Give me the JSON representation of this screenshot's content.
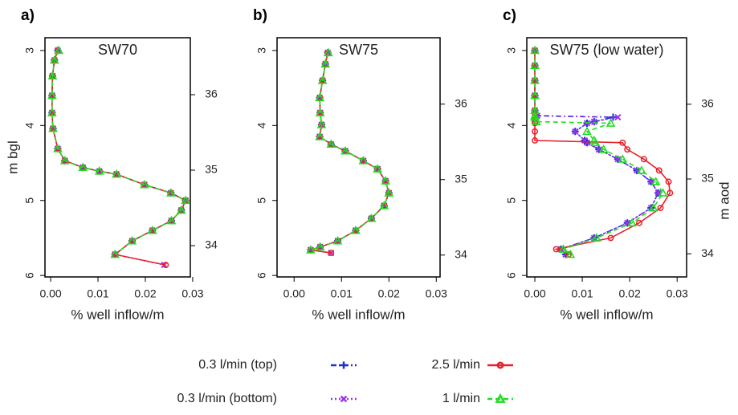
{
  "chart_data": [
    {
      "type": "line",
      "label": "a)",
      "title": "SW70",
      "ylabel": "m bgl",
      "xlabel": "% well inflow/m",
      "y_inverted": true,
      "depths": [
        3.0,
        3.13,
        3.34,
        3.6,
        3.83,
        4.04,
        4.31,
        4.47,
        4.56,
        4.61,
        4.65,
        4.79,
        4.9,
        5.0,
        5.13,
        5.27,
        5.4,
        5.54,
        5.72,
        5.86
      ],
      "series": [
        {
          "name": "0.3 l/min (top)",
          "color": "#1a2fd6",
          "marker": "plus",
          "linestyle": "dashdot",
          "values": [
            0.0015,
            0.0008,
            0.0004,
            0.0003,
            0.0003,
            0.0005,
            0.0015,
            0.003,
            0.0068,
            0.0103,
            0.0139,
            0.0198,
            0.0254,
            0.0285,
            0.0276,
            0.0255,
            0.0215,
            0.0172,
            0.0136,
            null
          ]
        },
        {
          "name": "0.3 l/min  (bottom)",
          "color": "#9933ee",
          "marker": "x",
          "linestyle": "dotted",
          "values": [
            0.0015,
            0.0008,
            0.0004,
            0.0003,
            0.0003,
            0.0005,
            0.0015,
            0.003,
            0.0068,
            0.0103,
            0.0139,
            0.0198,
            0.0254,
            0.0285,
            0.0276,
            0.0255,
            0.0215,
            0.0172,
            0.0136,
            0.024
          ]
        },
        {
          "name": "2.5 l/min",
          "color": "#e8202a",
          "marker": "circle",
          "linestyle": "solid",
          "values": [
            0.0015,
            0.0008,
            0.0004,
            0.0003,
            0.0003,
            0.0005,
            0.0015,
            0.003,
            0.0068,
            0.0103,
            0.0139,
            0.0198,
            0.0254,
            0.0285,
            0.0276,
            0.0255,
            0.0215,
            0.0172,
            0.0136,
            0.0243
          ]
        },
        {
          "name": "1 l/min",
          "color": "#22dd22",
          "marker": "triangle",
          "linestyle": "dashed",
          "values": [
            0.0017,
            0.0008,
            0.0004,
            0.0003,
            0.0003,
            0.0005,
            0.0015,
            0.003,
            0.0068,
            0.0103,
            0.0139,
            0.0198,
            0.0254,
            0.0285,
            0.0276,
            0.0255,
            0.0215,
            0.0172,
            0.0136,
            null
          ]
        }
      ],
      "xlim": [
        -0.0012,
        0.0295
      ],
      "xticks": [
        {
          "value": 0,
          "label": "0.00"
        },
        {
          "value": 0.01,
          "label": "0.01"
        },
        {
          "value": 0.02,
          "label": "0.02"
        },
        {
          "value": 0.03,
          "label": "0.03"
        }
      ],
      "ylim": [
        2.83,
        6.02
      ],
      "yticks": [
        3,
        4,
        5,
        6
      ],
      "y2lim": [
        33.585,
        36.755
      ],
      "y2ticks": [
        34,
        35,
        36
      ]
    },
    {
      "type": "line",
      "label": "b)",
      "title": "SW75",
      "xlabel": "% well inflow/m",
      "y_inverted": true,
      "depths": [
        3.03,
        3.18,
        3.4,
        3.63,
        3.83,
        3.99,
        4.15,
        4.25,
        4.34,
        4.47,
        4.58,
        4.74,
        4.9,
        5.07,
        5.24,
        5.4,
        5.54,
        5.62,
        5.66,
        5.7
      ],
      "series": [
        {
          "name": "0.3 l/min (top)",
          "color": "#1a2fd6",
          "marker": "plus",
          "linestyle": "dashdot",
          "values": [
            0.0071,
            0.0066,
            0.006,
            0.0054,
            0.0055,
            0.0058,
            0.0054,
            0.0078,
            0.0108,
            0.0146,
            0.0176,
            0.0193,
            0.02,
            0.019,
            0.0163,
            0.013,
            0.0092,
            0.0055,
            0.0035,
            null
          ]
        },
        {
          "name": "0.3 l/min  (bottom)",
          "color": "#9933ee",
          "marker": "x",
          "linestyle": "dotted",
          "values": [
            0.0071,
            0.0066,
            0.006,
            0.0054,
            0.0055,
            0.0058,
            0.0054,
            0.0078,
            0.0108,
            0.0146,
            0.0176,
            0.0193,
            0.02,
            0.019,
            0.0163,
            0.013,
            0.0092,
            0.0055,
            0.0035,
            0.0078
          ]
        },
        {
          "name": "2.5 l/min",
          "color": "#e8202a",
          "marker": "circle",
          "linestyle": "solid",
          "values": [
            0.0071,
            0.0066,
            0.006,
            0.0054,
            0.0055,
            0.0058,
            0.0054,
            0.0078,
            0.0108,
            0.0146,
            0.0176,
            0.0193,
            0.02,
            0.019,
            0.0163,
            0.013,
            0.0092,
            0.0055,
            0.0035,
            0.0078
          ]
        },
        {
          "name": "1 l/min",
          "color": "#22dd22",
          "marker": "triangle",
          "linestyle": "dashed",
          "values": [
            0.0072,
            0.0066,
            0.006,
            0.0054,
            0.0055,
            0.0058,
            0.0054,
            0.0078,
            0.0108,
            0.0146,
            0.0176,
            0.0193,
            0.02,
            0.019,
            0.0163,
            0.013,
            0.0092,
            0.0055,
            0.0035,
            null
          ]
        }
      ],
      "xlim": [
        -0.0036,
        0.0308
      ],
      "xticks": [
        {
          "value": 0,
          "label": "0.00"
        },
        {
          "value": 0.01,
          "label": "0.01"
        },
        {
          "value": 0.02,
          "label": "0.02"
        },
        {
          "value": 0.03,
          "label": "0.03"
        }
      ],
      "ylim": [
        2.83,
        6.02
      ],
      "yticks": [
        3,
        4,
        5,
        6
      ],
      "y2lim": [
        33.71,
        36.88
      ],
      "y2ticks": [
        34,
        35,
        36
      ]
    },
    {
      "type": "line",
      "label": "c)",
      "title": "SW75 (low water)",
      "xlabel": "% well inflow/m",
      "y2label": "m aod",
      "y_inverted": true,
      "depths": [
        3.0,
        3.2,
        3.4,
        3.6,
        3.8,
        3.87,
        3.89,
        3.95,
        3.97,
        4.08,
        4.2,
        4.23,
        4.32,
        4.45,
        4.6,
        4.75,
        4.9,
        5.1,
        5.3,
        5.5,
        5.65,
        5.72
      ],
      "series": [
        {
          "name": "0.3 l/min (top)",
          "color": "#1a2fd6",
          "marker": "plus",
          "linestyle": "dashdot",
          "values": [
            0,
            0,
            0,
            0,
            0,
            0.0005,
            0.0165,
            0.0125,
            0.011,
            0.0085,
            0.0105,
            0.011,
            0.0135,
            0.0175,
            0.0215,
            0.0245,
            0.026,
            0.0245,
            0.0195,
            0.0125,
            0.0055,
            0.0065
          ]
        },
        {
          "name": "0.3 l/min  (bottom)",
          "color": "#9933ee",
          "marker": "x",
          "linestyle": "dotted",
          "values": [
            0,
            0,
            0,
            0,
            0,
            0.0005,
            0.0175,
            0.0125,
            0.011,
            0.0085,
            0.0105,
            0.011,
            0.0135,
            0.0175,
            0.0215,
            0.0245,
            0.026,
            0.0245,
            0.0195,
            0.0125,
            0.0055,
            0.0065
          ]
        },
        {
          "name": "2.5 l/min",
          "color": "#e8202a",
          "marker": "circle",
          "linestyle": "solid",
          "values": [
            0,
            0,
            0,
            0,
            0,
            0,
            0,
            0,
            0,
            0,
            0,
            0.0185,
            0.0195,
            0.023,
            0.0262,
            0.0282,
            0.0285,
            0.0265,
            0.022,
            0.016,
            0.0045,
            0.0071
          ]
        },
        {
          "name": "1 l/min",
          "color": "#22dd22",
          "marker": "triangle",
          "linestyle": "dashed",
          "values": [
            0,
            0,
            0,
            0,
            0,
            0,
            0,
            0.0003,
            0.016,
            0.011,
            0.0125,
            0.0128,
            0.0145,
            0.0185,
            0.0225,
            0.0255,
            0.027,
            0.025,
            0.0205,
            0.013,
            0.006,
            0.0075
          ]
        }
      ],
      "xlim": [
        -0.0017,
        0.032
      ],
      "xticks": [
        {
          "value": 0,
          "label": "0.00"
        },
        {
          "value": 0.01,
          "label": "0.01"
        },
        {
          "value": 0.02,
          "label": "0.02"
        },
        {
          "value": 0.03,
          "label": "0.03"
        }
      ],
      "ylim": [
        2.83,
        6.02
      ],
      "yticks": [
        3,
        4,
        5,
        6
      ],
      "y2lim": [
        33.69,
        36.89
      ],
      "y2ticks": [
        34,
        35,
        36
      ]
    }
  ]
}
